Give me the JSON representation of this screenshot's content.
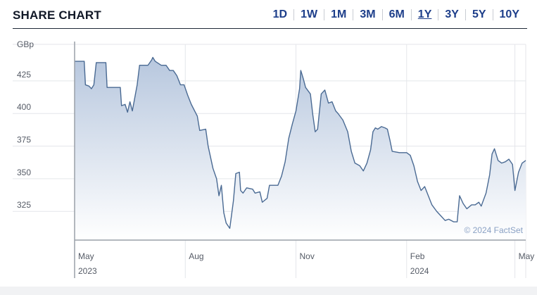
{
  "header": {
    "title": "SHARE CHART",
    "ranges": [
      "1D",
      "1W",
      "1M",
      "3M",
      "6M",
      "1Y",
      "3Y",
      "5Y",
      "10Y"
    ],
    "active_range": "1Y"
  },
  "chart_data": {
    "type": "area",
    "unit_label": "GBp",
    "y_ticks": [
      325,
      350,
      375,
      400,
      425
    ],
    "ylim": [
      303,
      453
    ],
    "x_ticks": [
      {
        "date": "2023-05-01",
        "label": "May",
        "year": "2023"
      },
      {
        "date": "2023-08-01",
        "label": "Aug",
        "year": ""
      },
      {
        "date": "2023-11-01",
        "label": "Nov",
        "year": ""
      },
      {
        "date": "2024-02-01",
        "label": "Feb",
        "year": "2024"
      },
      {
        "date": "2024-05-01",
        "label": "May",
        "year": ""
      }
    ],
    "xlim": [
      "2023-05-01",
      "2024-05-10"
    ],
    "grid": true,
    "watermark": "© 2024 FactSet",
    "colors": {
      "line": "#4a6a93",
      "fill_top": "#b7c7de",
      "fill_bottom": "#ffffff",
      "grid": "#e4e6ea"
    },
    "series": [
      {
        "points": [
          [
            "2023-05-01",
            440
          ],
          [
            "2023-05-09",
            440
          ],
          [
            "2023-05-10",
            422
          ],
          [
            "2023-05-13",
            421
          ],
          [
            "2023-05-15",
            419
          ],
          [
            "2023-05-17",
            422
          ],
          [
            "2023-05-19",
            439
          ],
          [
            "2023-05-27",
            439
          ],
          [
            "2023-05-28",
            420
          ],
          [
            "2023-06-08",
            420
          ],
          [
            "2023-06-09",
            406
          ],
          [
            "2023-06-12",
            407
          ],
          [
            "2023-06-14",
            401
          ],
          [
            "2023-06-16",
            409
          ],
          [
            "2023-06-18",
            402
          ],
          [
            "2023-06-22",
            422
          ],
          [
            "2023-06-24",
            437
          ],
          [
            "2023-07-01",
            437
          ],
          [
            "2023-07-04",
            441
          ],
          [
            "2023-07-05",
            443
          ],
          [
            "2023-07-07",
            440
          ],
          [
            "2023-07-12",
            437
          ],
          [
            "2023-07-16",
            437
          ],
          [
            "2023-07-19",
            433
          ],
          [
            "2023-07-22",
            433
          ],
          [
            "2023-07-25",
            429
          ],
          [
            "2023-07-28",
            422
          ],
          [
            "2023-07-31",
            422
          ],
          [
            "2023-08-03",
            414
          ],
          [
            "2023-08-06",
            407
          ],
          [
            "2023-08-11",
            398
          ],
          [
            "2023-08-13",
            387
          ],
          [
            "2023-08-18",
            388
          ],
          [
            "2023-08-20",
            375
          ],
          [
            "2023-08-24",
            358
          ],
          [
            "2023-08-27",
            350
          ],
          [
            "2023-08-29",
            337
          ],
          [
            "2023-08-31",
            345
          ],
          [
            "2023-09-02",
            324
          ],
          [
            "2023-09-04",
            316
          ],
          [
            "2023-09-07",
            312
          ],
          [
            "2023-09-10",
            333
          ],
          [
            "2023-09-12",
            354
          ],
          [
            "2023-09-15",
            355
          ],
          [
            "2023-09-16",
            341
          ],
          [
            "2023-09-18",
            339
          ],
          [
            "2023-09-21",
            343
          ],
          [
            "2023-09-26",
            342
          ],
          [
            "2023-09-28",
            339
          ],
          [
            "2023-10-02",
            340
          ],
          [
            "2023-10-04",
            332
          ],
          [
            "2023-10-08",
            335
          ],
          [
            "2023-10-10",
            345
          ],
          [
            "2023-10-17",
            345
          ],
          [
            "2023-10-20",
            352
          ],
          [
            "2023-10-23",
            363
          ],
          [
            "2023-10-26",
            381
          ],
          [
            "2023-10-29",
            392
          ],
          [
            "2023-11-01",
            402
          ],
          [
            "2023-11-04",
            419
          ],
          [
            "2023-11-05",
            433
          ],
          [
            "2023-11-07",
            427
          ],
          [
            "2023-11-09",
            420
          ],
          [
            "2023-11-13",
            415
          ],
          [
            "2023-11-15",
            399
          ],
          [
            "2023-11-17",
            386
          ],
          [
            "2023-11-19",
            388
          ],
          [
            "2023-11-22",
            415
          ],
          [
            "2023-11-25",
            418
          ],
          [
            "2023-11-28",
            408
          ],
          [
            "2023-12-01",
            409
          ],
          [
            "2023-12-04",
            402
          ],
          [
            "2023-12-06",
            400
          ],
          [
            "2023-12-10",
            395
          ],
          [
            "2023-12-14",
            386
          ],
          [
            "2023-12-17",
            371
          ],
          [
            "2023-12-20",
            362
          ],
          [
            "2023-12-24",
            360
          ],
          [
            "2023-12-27",
            356
          ],
          [
            "2023-12-30",
            362
          ],
          [
            "2024-01-02",
            372
          ],
          [
            "2024-01-04",
            386
          ],
          [
            "2024-01-06",
            389
          ],
          [
            "2024-01-08",
            388
          ],
          [
            "2024-01-11",
            390
          ],
          [
            "2024-01-14",
            389
          ],
          [
            "2024-01-16",
            388
          ],
          [
            "2024-01-18",
            380
          ],
          [
            "2024-01-20",
            371
          ],
          [
            "2024-01-26",
            370
          ],
          [
            "2024-02-01",
            370
          ],
          [
            "2024-02-04",
            368
          ],
          [
            "2024-02-07",
            360
          ],
          [
            "2024-02-10",
            348
          ],
          [
            "2024-02-13",
            341
          ],
          [
            "2024-02-16",
            344
          ],
          [
            "2024-02-19",
            337
          ],
          [
            "2024-02-22",
            330
          ],
          [
            "2024-02-26",
            325
          ],
          [
            "2024-03-01",
            321
          ],
          [
            "2024-03-04",
            318
          ],
          [
            "2024-03-07",
            319
          ],
          [
            "2024-03-11",
            317
          ],
          [
            "2024-03-14",
            317
          ],
          [
            "2024-03-16",
            337
          ],
          [
            "2024-03-19",
            331
          ],
          [
            "2024-03-22",
            327
          ],
          [
            "2024-03-26",
            330
          ],
          [
            "2024-03-29",
            330
          ],
          [
            "2024-04-01",
            332
          ],
          [
            "2024-04-03",
            329
          ],
          [
            "2024-04-07",
            339
          ],
          [
            "2024-04-10",
            353
          ],
          [
            "2024-04-12",
            369
          ],
          [
            "2024-04-14",
            373
          ],
          [
            "2024-04-17",
            364
          ],
          [
            "2024-04-20",
            362
          ],
          [
            "2024-04-23",
            363
          ],
          [
            "2024-04-26",
            365
          ],
          [
            "2024-04-29",
            361
          ],
          [
            "2024-05-01",
            341
          ],
          [
            "2024-05-04",
            355
          ],
          [
            "2024-05-07",
            362
          ],
          [
            "2024-05-10",
            364
          ]
        ]
      }
    ]
  }
}
